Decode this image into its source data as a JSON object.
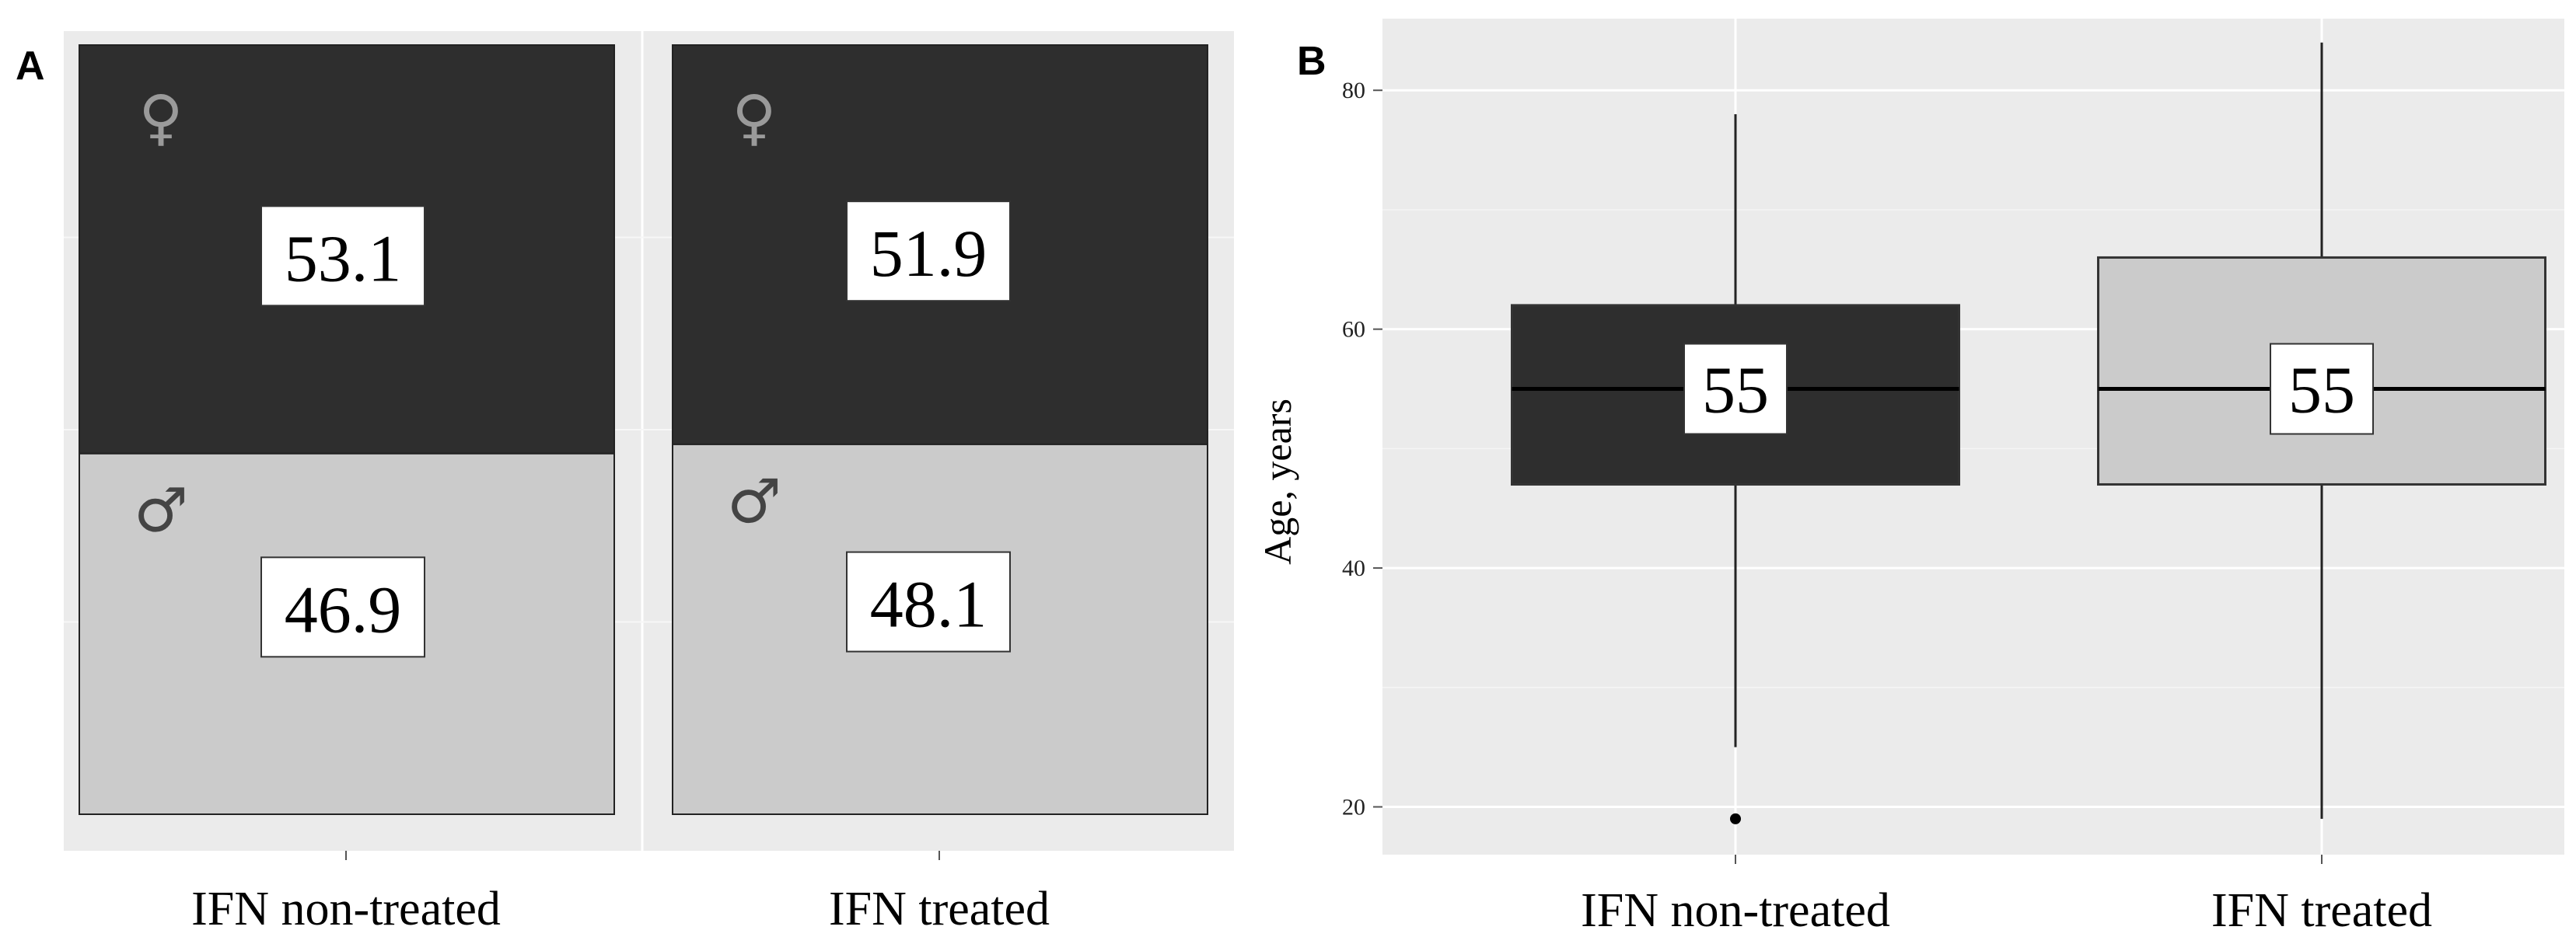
{
  "chart_data": [
    {
      "panel": "A",
      "type": "bar",
      "stacked": true,
      "categories": [
        "IFN non-treated",
        "IFN treated"
      ],
      "series": [
        {
          "symbol": "♀",
          "values": [
            53.1,
            51.9
          ],
          "color": "#2e2e2e",
          "symbol_color": "#9a9a9a"
        },
        {
          "symbol": "♂",
          "values": [
            46.9,
            48.1
          ],
          "color": "#cbcbcb",
          "symbol_color": "#444444"
        }
      ],
      "ylim": [
        0,
        100
      ],
      "background": "#ebebeb",
      "grid": true
    },
    {
      "panel": "B",
      "type": "boxplot",
      "categories": [
        "IFN non-treated",
        "IFN treated"
      ],
      "ylabel": "Age, years",
      "ylim": [
        16,
        86
      ],
      "yticks": [
        20,
        40,
        60,
        80
      ],
      "boxes": [
        {
          "whisker_low": 25,
          "q1": 47,
          "median": 55,
          "q3": 62,
          "whisker_high": 78,
          "outliers": [
            19
          ],
          "median_label": "55",
          "color": "#2e2e2e"
        },
        {
          "whisker_low": 19,
          "q1": 47,
          "median": 55,
          "q3": 66,
          "whisker_high": 84,
          "outliers": [],
          "median_label": "55",
          "color": "#cbcbcb"
        }
      ],
      "background": "#ebebeb",
      "grid": true
    }
  ]
}
